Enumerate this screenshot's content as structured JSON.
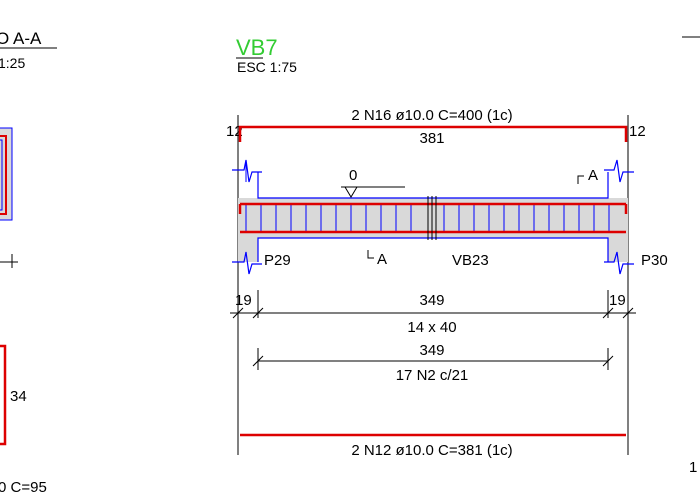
{
  "section_left": {
    "title": "O A-A",
    "scale": "1:25",
    "dim_34": "34",
    "bottom_text": "0 C=95"
  },
  "beam": {
    "title": "VB7",
    "title_color": "#33cc33",
    "scale": "ESC 1:75",
    "top_bar": "2 N16 ø10.0 C=400 (1c)",
    "top_len": "381",
    "hook_left": "12",
    "hook_right": "12",
    "level": "0",
    "section_mark_top": "A",
    "section_mark_bottom": "A",
    "support_left": "P29",
    "support_mid": "VB23",
    "support_right": "P30",
    "dim_left": "19",
    "dim_span": "349",
    "dim_right": "19",
    "stirrup_count": "14 x 40",
    "stirrup_span": "349",
    "stirrup_spec": "17 N2 c/21",
    "bottom_bar": "2 N12 ø10.0 C=381 (1c)"
  },
  "right_edge": {
    "number": "1"
  },
  "colors": {
    "rebar": "#dd0000",
    "concrete": "#d9d9d9",
    "steel_lines": "#0000ff",
    "line": "#000000"
  }
}
